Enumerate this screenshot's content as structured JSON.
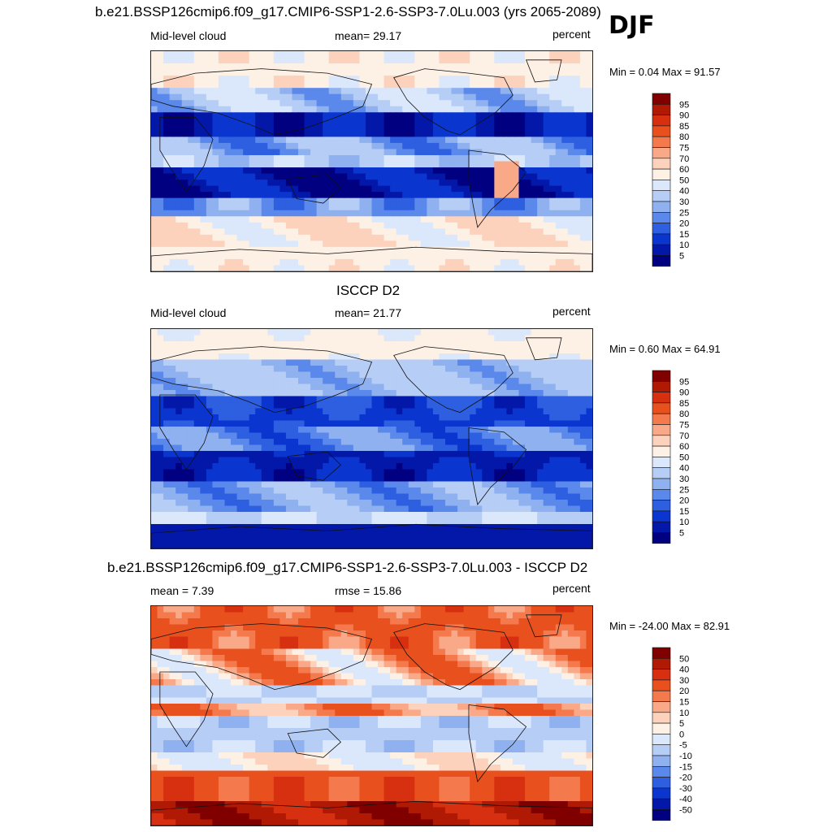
{
  "season": "DJF",
  "panels": [
    {
      "id": "model",
      "title": "b.e21.BSSP126cmip6.f09_g17.CMIP6-SSP1-2.6-SSP3-7.0Lu.003 (yrs 2065-2089)",
      "left_label": "Mid-level cloud",
      "center_label": "mean=  29.17",
      "units": "percent",
      "minmax": "Min =   0.04 Max =  91.57",
      "colorbar_labels": [
        "95",
        "90",
        "85",
        "80",
        "75",
        "70",
        "60",
        "50",
        "40",
        "30",
        "25",
        "20",
        "15",
        "10",
        "5"
      ]
    },
    {
      "id": "obs",
      "title": "ISCCP D2",
      "left_label": "Mid-level cloud",
      "center_label": "mean=  21.77",
      "units": "percent",
      "minmax": "Min =   0.60 Max =  64.91",
      "colorbar_labels": [
        "95",
        "90",
        "85",
        "80",
        "75",
        "70",
        "60",
        "50",
        "40",
        "30",
        "25",
        "20",
        "15",
        "10",
        "5"
      ]
    },
    {
      "id": "diff",
      "title": "b.e21.BSSP126cmip6.f09_g17.CMIP6-SSP1-2.6-SSP3-7.0Lu.003 - ISCCP D2",
      "left_label": "mean =   7.39",
      "center_label": "rmse =  15.86",
      "units": "percent",
      "minmax": "Min = -24.00 Max =  82.91",
      "colorbar_labels": [
        "50",
        "40",
        "30",
        "20",
        "15",
        "10",
        "5",
        "0",
        "-5",
        "-10",
        "-15",
        "-20",
        "-30",
        "-40",
        "-50"
      ]
    }
  ],
  "colors": {
    "scale": [
      "#800000",
      "#b01a05",
      "#d63010",
      "#e8501e",
      "#f47a4e",
      "#f9a888",
      "#fcd2bd",
      "#fdf0e5",
      "#dbe8fb",
      "#b6cdf6",
      "#8fb1f0",
      "#5b89eb",
      "#2d5fe0",
      "#0a36cf",
      "#0318a8",
      "#000080"
    ]
  }
}
